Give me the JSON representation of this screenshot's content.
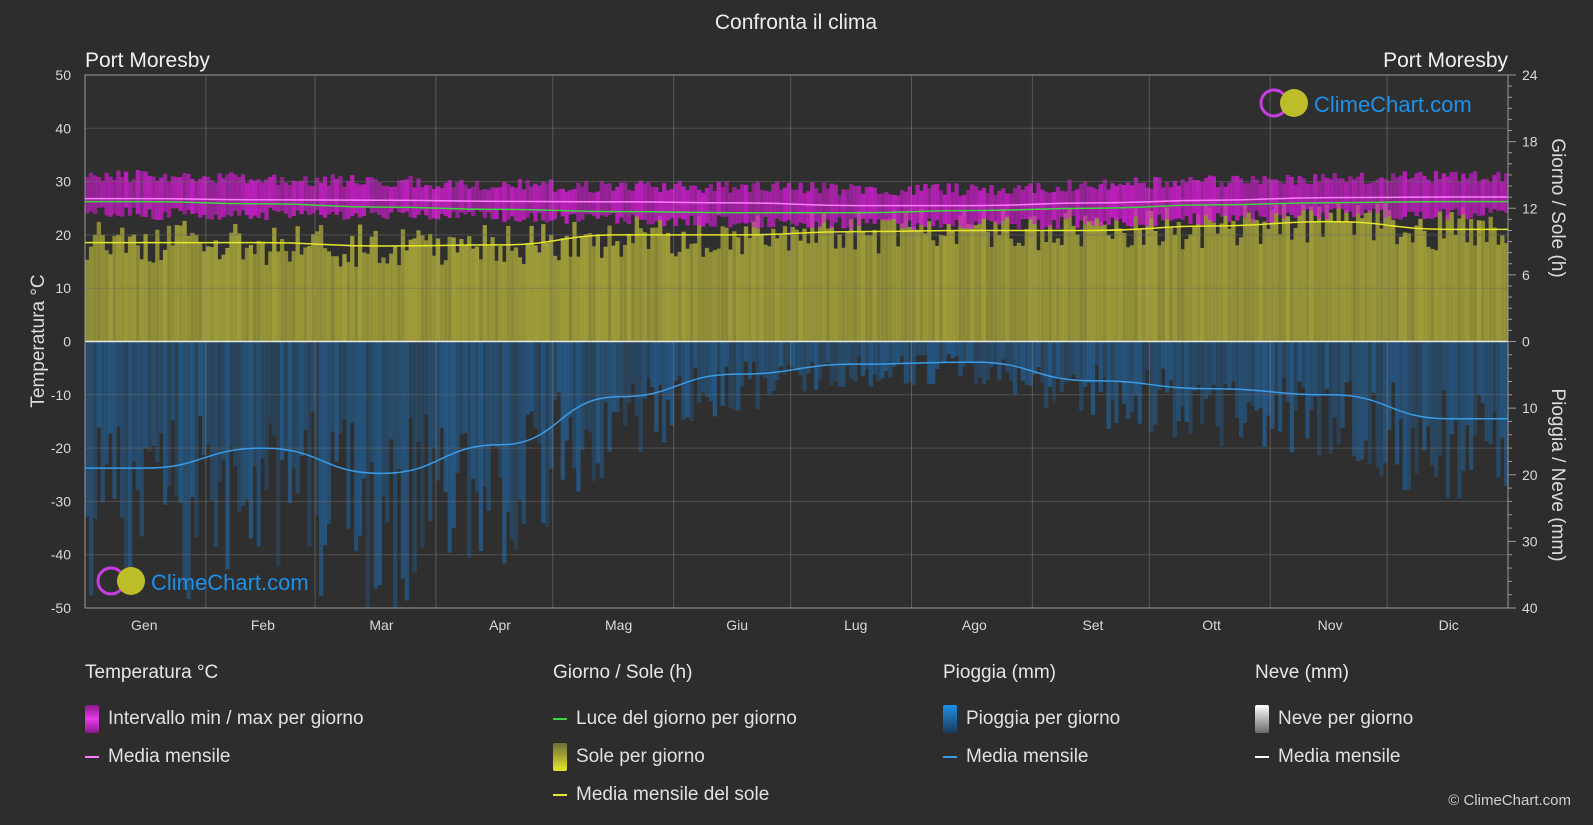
{
  "title": "Confronta il clima",
  "location_left": "Port Moresby",
  "location_right": "Port Moresby",
  "watermark_text": "ClimeChart.com",
  "copyright": "© ClimeChart.com",
  "colors": {
    "background": "#2d2d2d",
    "temp_band": "#d21cd2",
    "temp_mean": "#ff7dff",
    "daylight": "#3ed63e",
    "sun_band": "#a4a23a",
    "sun_mean": "#e6e62a",
    "rain_band": "#1f6eb4",
    "rain_mean": "#3a9be6",
    "snow_mean": "#ffffff",
    "grid": "#5a5a5a",
    "brand": "#1e90e8"
  },
  "legend": {
    "temperature": {
      "header": "Temperatura °C",
      "items": [
        {
          "label": "Intervallo min / max per giorno",
          "swatch": "rect",
          "color": "#d21cd2"
        },
        {
          "label": "Media mensile",
          "swatch": "line",
          "color": "#ff7dff"
        }
      ]
    },
    "sun": {
      "header": "Giorno / Sole (h)",
      "items": [
        {
          "label": "Luce del giorno per giorno",
          "swatch": "line",
          "color": "#3ed63e"
        },
        {
          "label": "Sole per giorno",
          "swatch": "rect",
          "color": "#c8c83a"
        },
        {
          "label": "Media mensile del sole",
          "swatch": "line",
          "color": "#e6e62a"
        }
      ]
    },
    "rain": {
      "header": "Pioggia (mm)",
      "items": [
        {
          "label": "Pioggia per giorno",
          "swatch": "rect",
          "color": "#1f78c8"
        },
        {
          "label": "Media mensile",
          "swatch": "line",
          "color": "#3a9be6"
        }
      ]
    },
    "snow": {
      "header": "Neve (mm)",
      "items": [
        {
          "label": "Neve per giorno",
          "swatch": "rect",
          "color": "#cfcfcf"
        },
        {
          "label": "Media mensile",
          "swatch": "line",
          "color": "#ffffff"
        }
      ]
    }
  },
  "chart_data": {
    "type": "line",
    "title": "Confronta il clima",
    "categories": [
      "Gen",
      "Feb",
      "Mar",
      "Apr",
      "Mag",
      "Giu",
      "Lug",
      "Ago",
      "Set",
      "Ott",
      "Nov",
      "Dic"
    ],
    "axes": {
      "left": {
        "label": "Temperatura °C",
        "min": -50,
        "max": 50,
        "ticks": [
          50,
          40,
          30,
          20,
          10,
          0,
          -10,
          -20,
          -30,
          -40,
          -50
        ]
      },
      "right_top": {
        "label": "Giorno / Sole (h)",
        "min": 0,
        "max": 24,
        "ticks": [
          24,
          18,
          12,
          6,
          0
        ]
      },
      "right_bottom": {
        "label": "Pioggia / Neve (mm)",
        "min": 0,
        "max": 40,
        "ticks": [
          0,
          10,
          20,
          30,
          40
        ],
        "inverted": true
      }
    },
    "grid": true,
    "series": [
      {
        "name": "Intervallo min / max per giorno",
        "kind": "band",
        "axis": "left",
        "min": [
          24,
          24,
          24,
          23.5,
          23,
          22.5,
          22,
          22,
          22.5,
          23,
          24,
          24
        ],
        "max": [
          31,
          30.5,
          30,
          29.5,
          29,
          29,
          28.5,
          28.5,
          29.5,
          30,
          30.5,
          31
        ]
      },
      {
        "name": "Media mensile",
        "kind": "line",
        "axis": "left",
        "values": [
          26.8,
          26.6,
          26.5,
          26.3,
          26.2,
          26.0,
          25.5,
          25.5,
          26.0,
          26.5,
          27.0,
          27.1
        ]
      },
      {
        "name": "Luce del giorno per giorno",
        "kind": "line",
        "axis": "right_top",
        "values": [
          12.6,
          12.4,
          12.1,
          11.9,
          11.7,
          11.6,
          11.6,
          11.8,
          12.0,
          12.3,
          12.5,
          12.6
        ]
      },
      {
        "name": "Sole per giorno",
        "kind": "band",
        "axis": "right_top",
        "values": [
          8.9,
          8.9,
          8.6,
          8.7,
          9.6,
          9.6,
          9.9,
          10.0,
          10.0,
          10.4,
          10.8,
          10.1
        ]
      },
      {
        "name": "Media mensile del sole",
        "kind": "line",
        "axis": "right_top",
        "values": [
          8.9,
          8.9,
          8.6,
          8.7,
          9.6,
          9.6,
          9.9,
          10.0,
          10.0,
          10.4,
          10.8,
          10.1
        ]
      },
      {
        "name": "Pioggia per giorno",
        "kind": "band",
        "axis": "right_bottom",
        "values": [
          19.0,
          16.0,
          19.8,
          15.5,
          8.3,
          4.9,
          3.4,
          3.1,
          5.9,
          7.1,
          8.0,
          11.6
        ]
      },
      {
        "name": "Media mensile",
        "kind": "line",
        "axis": "right_bottom",
        "values": [
          19.0,
          16.0,
          19.8,
          15.5,
          8.3,
          4.9,
          3.4,
          3.1,
          5.9,
          7.1,
          8.0,
          11.6
        ]
      }
    ]
  }
}
